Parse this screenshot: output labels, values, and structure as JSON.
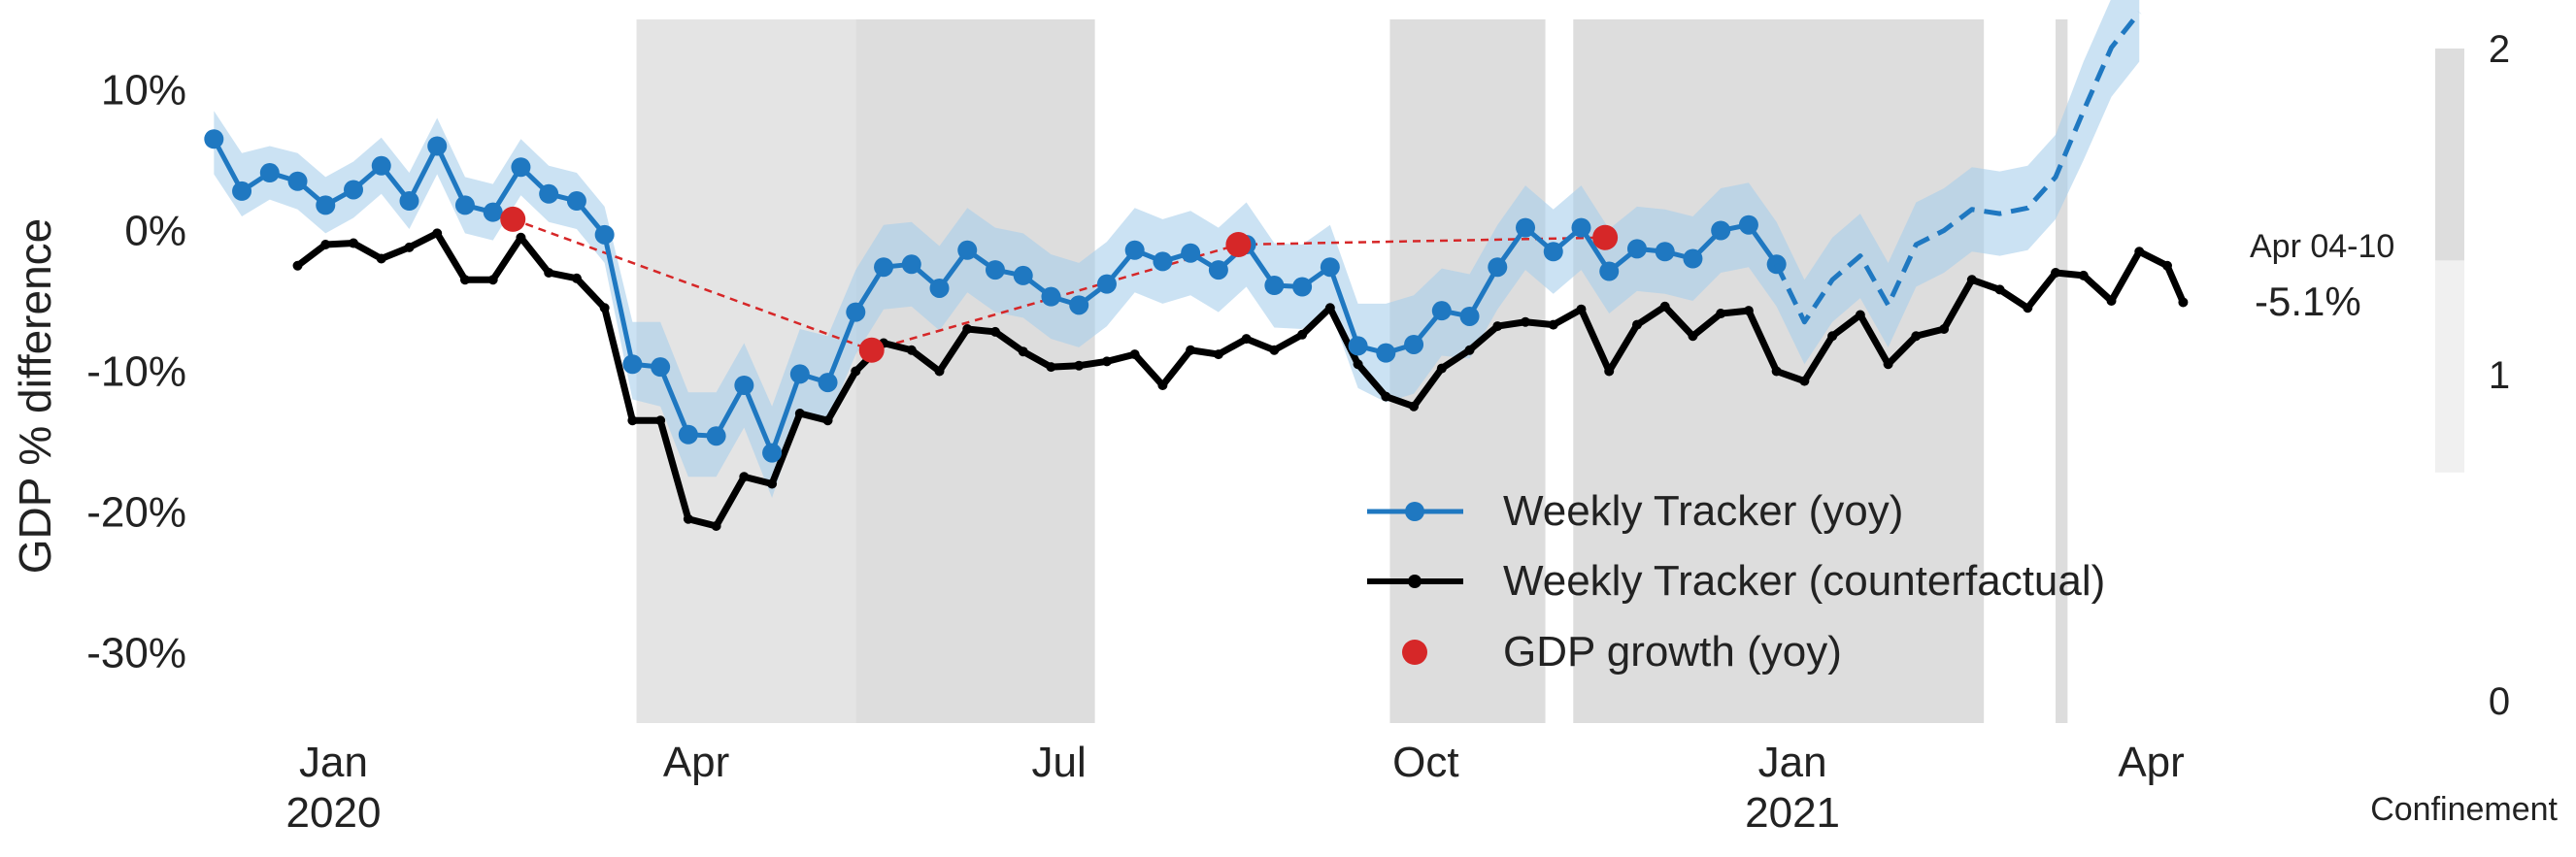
{
  "chart_data": {
    "type": "line",
    "ylabel": "GDP % difference",
    "y_ticks": [
      {
        "value": 10,
        "label": "10%"
      },
      {
        "value": 0,
        "label": "0%"
      },
      {
        "value": -10,
        "label": "-10%"
      },
      {
        "value": -20,
        "label": "-20%"
      },
      {
        "value": -30,
        "label": "-30%"
      }
    ],
    "ylim": [
      -35,
      15
    ],
    "xlim": [
      "2019-11-29",
      "2021-04-24"
    ],
    "x_ticks": [
      {
        "date": "2020-01-01",
        "label": "Jan",
        "sublabel": "2020"
      },
      {
        "date": "2020-04-01",
        "label": "Apr",
        "sublabel": ""
      },
      {
        "date": "2020-07-01",
        "label": "Jul",
        "sublabel": ""
      },
      {
        "date": "2020-10-01",
        "label": "Oct",
        "sublabel": ""
      },
      {
        "date": "2021-01-01",
        "label": "Jan",
        "sublabel": "2021"
      },
      {
        "date": "2021-04-01",
        "label": "Apr",
        "sublabel": ""
      }
    ],
    "grid": false,
    "legend_position": "bottom-center",
    "colors": {
      "tracker": "#1f78c1",
      "band": "#a9cfeb",
      "counterfactual": "#000000",
      "gdp": "#d62728",
      "shade": "#dddddd",
      "shade_light": "#e4e4e4",
      "confinement_mid": "#f0f0f0"
    },
    "series": [
      {
        "name": "Weekly Tracker (yoy)",
        "style": "line-marker",
        "points": [
          {
            "x": "2019-12-02",
            "y": 6.5,
            "lo": 4.0,
            "hi": 8.5
          },
          {
            "x": "2019-12-09",
            "y": 2.8,
            "lo": 1.0,
            "hi": 5.5
          },
          {
            "x": "2019-12-16",
            "y": 4.1,
            "lo": 2.2,
            "hi": 6.0
          },
          {
            "x": "2019-12-23",
            "y": 3.5,
            "lo": 1.5,
            "hi": 5.5
          },
          {
            "x": "2019-12-30",
            "y": 1.8,
            "lo": -0.2,
            "hi": 3.8
          },
          {
            "x": "2020-01-06",
            "y": 2.9,
            "lo": 0.9,
            "hi": 4.9
          },
          {
            "x": "2020-01-13",
            "y": 4.6,
            "lo": 2.6,
            "hi": 6.6
          },
          {
            "x": "2020-01-20",
            "y": 2.1,
            "lo": 0.1,
            "hi": 4.1
          },
          {
            "x": "2020-01-27",
            "y": 6.0,
            "lo": 4.0,
            "hi": 8.0
          },
          {
            "x": "2020-02-03",
            "y": 1.8,
            "lo": -0.2,
            "hi": 3.8
          },
          {
            "x": "2020-02-10",
            "y": 1.3,
            "lo": -0.7,
            "hi": 3.3
          },
          {
            "x": "2020-02-17",
            "y": 4.5,
            "lo": 2.5,
            "hi": 6.5
          },
          {
            "x": "2020-02-24",
            "y": 2.6,
            "lo": 0.6,
            "hi": 4.6
          },
          {
            "x": "2020-03-02",
            "y": 2.1,
            "lo": 0.1,
            "hi": 4.1
          },
          {
            "x": "2020-03-09",
            "y": -0.3,
            "lo": -2.3,
            "hi": 1.7
          },
          {
            "x": "2020-03-16",
            "y": -9.5,
            "lo": -12.0,
            "hi": -6.5
          },
          {
            "x": "2020-03-23",
            "y": -9.7,
            "lo": -12.5,
            "hi": -6.5
          },
          {
            "x": "2020-03-30",
            "y": -14.5,
            "lo": -17.5,
            "hi": -11.5
          },
          {
            "x": "2020-04-06",
            "y": -14.6,
            "lo": -17.5,
            "hi": -11.5
          },
          {
            "x": "2020-04-13",
            "y": -11.0,
            "lo": -14.0,
            "hi": -8.0
          },
          {
            "x": "2020-04-20",
            "y": -15.8,
            "lo": -19.0,
            "hi": -12.5
          },
          {
            "x": "2020-04-27",
            "y": -10.2,
            "lo": -13.0,
            "hi": -7.0
          },
          {
            "x": "2020-05-04",
            "y": -10.8,
            "lo": -13.5,
            "hi": -7.5
          },
          {
            "x": "2020-05-11",
            "y": -5.8,
            "lo": -8.8,
            "hi": -2.8
          },
          {
            "x": "2020-05-18",
            "y": -2.6,
            "lo": -5.6,
            "hi": 0.4
          },
          {
            "x": "2020-05-25",
            "y": -2.4,
            "lo": -5.4,
            "hi": 0.6
          },
          {
            "x": "2020-06-01",
            "y": -4.1,
            "lo": -7.1,
            "hi": -1.1
          },
          {
            "x": "2020-06-08",
            "y": -1.4,
            "lo": -4.4,
            "hi": 1.6
          },
          {
            "x": "2020-06-15",
            "y": -2.8,
            "lo": -5.8,
            "hi": 0.2
          },
          {
            "x": "2020-06-22",
            "y": -3.2,
            "lo": -6.2,
            "hi": -0.2
          },
          {
            "x": "2020-06-29",
            "y": -4.7,
            "lo": -7.7,
            "hi": -1.7
          },
          {
            "x": "2020-07-06",
            "y": -5.3,
            "lo": -8.3,
            "hi": -2.3
          },
          {
            "x": "2020-07-13",
            "y": -3.8,
            "lo": -6.8,
            "hi": -0.8
          },
          {
            "x": "2020-07-20",
            "y": -1.4,
            "lo": -4.4,
            "hi": 1.6
          },
          {
            "x": "2020-07-27",
            "y": -2.2,
            "lo": -5.2,
            "hi": 0.8
          },
          {
            "x": "2020-08-03",
            "y": -1.6,
            "lo": -4.6,
            "hi": 1.4
          },
          {
            "x": "2020-08-10",
            "y": -2.8,
            "lo": -5.8,
            "hi": 0.2
          },
          {
            "x": "2020-08-17",
            "y": -1.0,
            "lo": -4.0,
            "hi": 2.0
          },
          {
            "x": "2020-08-24",
            "y": -3.9,
            "lo": -6.9,
            "hi": -0.9
          },
          {
            "x": "2020-08-31",
            "y": -4.0,
            "lo": -7.0,
            "hi": -1.0
          },
          {
            "x": "2020-09-07",
            "y": -2.6,
            "lo": -5.6,
            "hi": 0.4
          },
          {
            "x": "2020-09-14",
            "y": -8.2,
            "lo": -11.2,
            "hi": -5.2
          },
          {
            "x": "2020-09-21",
            "y": -8.7,
            "lo": -12.2,
            "hi": -5.2
          },
          {
            "x": "2020-09-28",
            "y": -8.1,
            "lo": -11.6,
            "hi": -4.6
          },
          {
            "x": "2020-10-05",
            "y": -5.7,
            "lo": -8.9,
            "hi": -2.7
          },
          {
            "x": "2020-10-12",
            "y": -6.1,
            "lo": -9.1,
            "hi": -3.1
          },
          {
            "x": "2020-10-19",
            "y": -2.6,
            "lo": -5.6,
            "hi": 0.4
          },
          {
            "x": "2020-10-26",
            "y": 0.2,
            "lo": -2.8,
            "hi": 3.2
          },
          {
            "x": "2020-11-02",
            "y": -1.5,
            "lo": -4.5,
            "hi": 1.5
          },
          {
            "x": "2020-11-09",
            "y": 0.2,
            "lo": -2.8,
            "hi": 3.2
          },
          {
            "x": "2020-11-16",
            "y": -2.9,
            "lo": -5.9,
            "hi": 0.1
          },
          {
            "x": "2020-11-23",
            "y": -1.3,
            "lo": -4.3,
            "hi": 1.7
          },
          {
            "x": "2020-11-30",
            "y": -1.5,
            "lo": -4.5,
            "hi": 1.5
          },
          {
            "x": "2020-12-07",
            "y": -2.0,
            "lo": -5.0,
            "hi": 1.0
          },
          {
            "x": "2020-12-14",
            "y": 0.0,
            "lo": -3.0,
            "hi": 3.0
          },
          {
            "x": "2020-12-21",
            "y": 0.4,
            "lo": -2.6,
            "hi": 3.4
          },
          {
            "x": "2020-12-28",
            "y": -2.4,
            "lo": -5.4,
            "hi": 0.6
          }
        ]
      },
      {
        "name": "",
        "style": "dashed",
        "points": [
          {
            "x": "2020-12-28",
            "y": -2.4,
            "lo": -5.4,
            "hi": 0.6
          },
          {
            "x": "2021-01-04",
            "y": -6.5,
            "lo": -9.5,
            "hi": -3.5
          },
          {
            "x": "2021-01-11",
            "y": -3.5,
            "lo": -6.5,
            "hi": -0.5
          },
          {
            "x": "2021-01-18",
            "y": -1.8,
            "lo": -4.8,
            "hi": 1.2
          },
          {
            "x": "2021-01-25",
            "y": -5.3,
            "lo": -8.3,
            "hi": -2.3
          },
          {
            "x": "2021-02-01",
            "y": -1.0,
            "lo": -4.0,
            "hi": 2.0
          },
          {
            "x": "2021-02-08",
            "y": 0.0,
            "lo": -3.0,
            "hi": 3.0
          },
          {
            "x": "2021-02-15",
            "y": 1.5,
            "lo": -1.5,
            "hi": 4.5
          },
          {
            "x": "2021-02-22",
            "y": 1.2,
            "lo": -1.8,
            "hi": 4.2
          },
          {
            "x": "2021-03-01",
            "y": 1.6,
            "lo": -1.4,
            "hi": 4.6
          },
          {
            "x": "2021-03-08",
            "y": 3.8,
            "lo": 0.8,
            "hi": 6.8
          },
          {
            "x": "2021-03-15",
            "y": 8.5,
            "lo": 5.0,
            "hi": 12.0
          },
          {
            "x": "2021-03-22",
            "y": 13.0,
            "lo": 9.5,
            "hi": 16.5
          },
          {
            "x": "2021-03-29",
            "y": 15.5,
            "lo": 12.0,
            "hi": 19.0
          }
        ]
      },
      {
        "name": "Weekly Tracker (counterfactual)",
        "style": "line-dot",
        "points": [
          {
            "x": "2019-12-23",
            "y": -2.5
          },
          {
            "x": "2019-12-30",
            "y": -1.0
          },
          {
            "x": "2020-01-06",
            "y": -0.9
          },
          {
            "x": "2020-01-13",
            "y": -2.0
          },
          {
            "x": "2020-01-20",
            "y": -1.2
          },
          {
            "x": "2020-01-27",
            "y": -0.2
          },
          {
            "x": "2020-02-03",
            "y": -3.5
          },
          {
            "x": "2020-02-10",
            "y": -3.5
          },
          {
            "x": "2020-02-17",
            "y": -0.5
          },
          {
            "x": "2020-02-24",
            "y": -3.0
          },
          {
            "x": "2020-03-02",
            "y": -3.4
          },
          {
            "x": "2020-03-09",
            "y": -5.5
          },
          {
            "x": "2020-03-16",
            "y": -13.5
          },
          {
            "x": "2020-03-23",
            "y": -13.5
          },
          {
            "x": "2020-03-30",
            "y": -20.5
          },
          {
            "x": "2020-04-06",
            "y": -21.0
          },
          {
            "x": "2020-04-13",
            "y": -17.5
          },
          {
            "x": "2020-04-20",
            "y": -18.0
          },
          {
            "x": "2020-04-27",
            "y": -13.0
          },
          {
            "x": "2020-05-04",
            "y": -13.5
          },
          {
            "x": "2020-05-11",
            "y": -10.0
          },
          {
            "x": "2020-05-18",
            "y": -8.0
          },
          {
            "x": "2020-05-25",
            "y": -8.5
          },
          {
            "x": "2020-06-01",
            "y": -10.0
          },
          {
            "x": "2020-06-08",
            "y": -7.0
          },
          {
            "x": "2020-06-15",
            "y": -7.2
          },
          {
            "x": "2020-06-22",
            "y": -8.6
          },
          {
            "x": "2020-06-29",
            "y": -9.7
          },
          {
            "x": "2020-07-06",
            "y": -9.6
          },
          {
            "x": "2020-07-13",
            "y": -9.3
          },
          {
            "x": "2020-07-20",
            "y": -8.8
          },
          {
            "x": "2020-07-27",
            "y": -11.0
          },
          {
            "x": "2020-08-03",
            "y": -8.5
          },
          {
            "x": "2020-08-10",
            "y": -8.8
          },
          {
            "x": "2020-08-17",
            "y": -7.7
          },
          {
            "x": "2020-08-24",
            "y": -8.5
          },
          {
            "x": "2020-08-31",
            "y": -7.4
          },
          {
            "x": "2020-09-07",
            "y": -5.5
          },
          {
            "x": "2020-09-14",
            "y": -9.5
          },
          {
            "x": "2020-09-21",
            "y": -11.8
          },
          {
            "x": "2020-09-28",
            "y": -12.5
          },
          {
            "x": "2020-10-05",
            "y": -9.8
          },
          {
            "x": "2020-10-12",
            "y": -8.5
          },
          {
            "x": "2020-10-19",
            "y": -6.8
          },
          {
            "x": "2020-10-26",
            "y": -6.5
          },
          {
            "x": "2020-11-02",
            "y": -6.7
          },
          {
            "x": "2020-11-09",
            "y": -5.6
          },
          {
            "x": "2020-11-16",
            "y": -10.0
          },
          {
            "x": "2020-11-23",
            "y": -6.7
          },
          {
            "x": "2020-11-30",
            "y": -5.4
          },
          {
            "x": "2020-12-07",
            "y": -7.5
          },
          {
            "x": "2020-12-14",
            "y": -5.9
          },
          {
            "x": "2020-12-21",
            "y": -5.7
          },
          {
            "x": "2020-12-28",
            "y": -10.0
          },
          {
            "x": "2021-01-04",
            "y": -10.7
          },
          {
            "x": "2021-01-11",
            "y": -7.5
          },
          {
            "x": "2021-01-18",
            "y": -6.0
          },
          {
            "x": "2021-01-25",
            "y": -9.5
          },
          {
            "x": "2021-02-01",
            "y": -7.5
          },
          {
            "x": "2021-02-08",
            "y": -7.0
          },
          {
            "x": "2021-02-15",
            "y": -3.5
          },
          {
            "x": "2021-02-22",
            "y": -4.2
          },
          {
            "x": "2021-03-01",
            "y": -5.5
          },
          {
            "x": "2021-03-08",
            "y": -3.0
          },
          {
            "x": "2021-03-15",
            "y": -3.2
          },
          {
            "x": "2021-03-22",
            "y": -5.0
          },
          {
            "x": "2021-03-29",
            "y": -1.5
          },
          {
            "x": "2021-04-05",
            "y": -2.5
          },
          {
            "x": "2021-04-09",
            "y": -5.1
          }
        ]
      },
      {
        "name": "GDP growth (yoy)",
        "style": "marker-dashed",
        "points": [
          {
            "x": "2020-02-15",
            "y": 0.8
          },
          {
            "x": "2020-05-15",
            "y": -8.5
          },
          {
            "x": "2020-08-15",
            "y": -1.0
          },
          {
            "x": "2020-11-15",
            "y": -0.5
          }
        ]
      }
    ],
    "shaded_periods": [
      {
        "start": "2020-03-17",
        "end": "2020-05-11",
        "tone": "light"
      },
      {
        "start": "2020-05-11",
        "end": "2020-07-10",
        "tone": "dark"
      },
      {
        "start": "2020-09-22",
        "end": "2020-10-31",
        "tone": "dark"
      },
      {
        "start": "2020-11-07",
        "end": "2021-02-18",
        "tone": "dark"
      },
      {
        "start": "2021-03-08",
        "end": "2021-03-11",
        "tone": "dark"
      }
    ],
    "annotation": {
      "period": "Apr 04-10",
      "value": "-5.1%"
    },
    "confinement": {
      "label": "Confinement",
      "ticks": [
        {
          "value": 2,
          "label": "2"
        },
        {
          "value": 1,
          "label": "1"
        },
        {
          "value": 0,
          "label": "0"
        }
      ],
      "segments": [
        {
          "from": 1.35,
          "to": 2.0,
          "tone": "dark"
        },
        {
          "from": 0.7,
          "to": 1.35,
          "tone": "light"
        }
      ]
    }
  }
}
